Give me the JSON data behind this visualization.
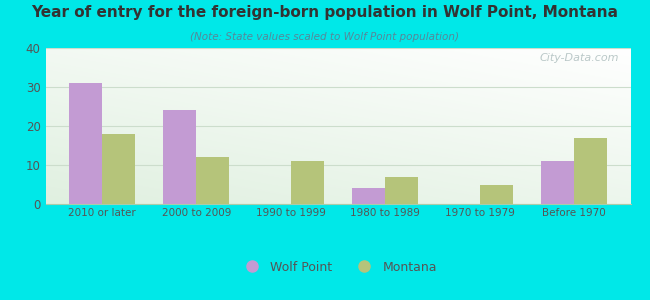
{
  "title": "Year of entry for the foreign-born population in Wolf Point, Montana",
  "subtitle": "(Note: State values scaled to Wolf Point population)",
  "categories": [
    "2010 or later",
    "2000 to 2009",
    "1990 to 1999",
    "1980 to 1989",
    "1970 to 1979",
    "Before 1970"
  ],
  "wolf_point": [
    31,
    24,
    0,
    4,
    0,
    11
  ],
  "montana": [
    18,
    12,
    11,
    7,
    5,
    17
  ],
  "wolf_point_color": "#c39bd3",
  "montana_color": "#b5c47a",
  "background_outer": "#00e8e8",
  "chart_bg_top": "#f0f8ee",
  "chart_bg_bottom": "#ffffff",
  "ylim": [
    0,
    40
  ],
  "yticks": [
    0,
    10,
    20,
    30,
    40
  ],
  "bar_width": 0.35,
  "legend_wolf_point": "Wolf Point",
  "legend_montana": "Montana",
  "watermark": "City-Data.com",
  "title_color": "#333333",
  "subtitle_color": "#558899",
  "tick_color": "#555555",
  "grid_color": "#ccddcc"
}
